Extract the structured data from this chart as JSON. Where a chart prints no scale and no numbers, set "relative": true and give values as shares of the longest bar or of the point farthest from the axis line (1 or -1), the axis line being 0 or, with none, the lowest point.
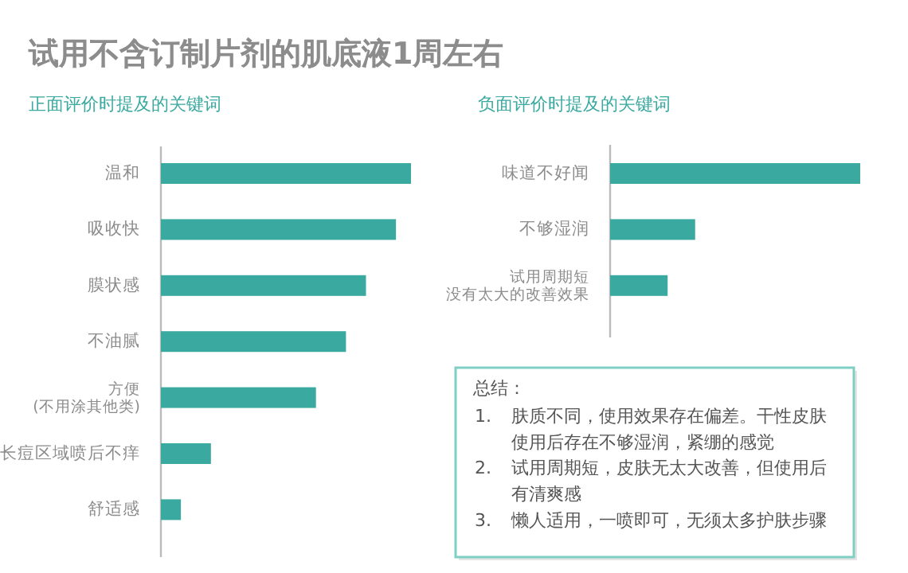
{
  "chart_data": [
    {
      "type": "bar",
      "orientation": "horizontal",
      "relative": true,
      "title": "试用不含订制片剂的肌底液1周左右",
      "subtitle": "正面评价时提及的关键词",
      "categories": [
        "温和",
        "吸收快",
        "膜状感",
        "不油腻",
        "方便\n(不用涂其他类)",
        "长痘区域喷后不痒",
        "舒适感"
      ],
      "values": [
        1,
        0.94,
        0.82,
        0.74,
        0.62,
        0.2,
        0.08
      ],
      "color": "#3aa99f"
    },
    {
      "type": "bar",
      "orientation": "horizontal",
      "relative": true,
      "subtitle": "负面评价时提及的关键词",
      "categories": [
        "味道不好闻",
        "不够湿润",
        "试用周期短没有太大的改善效果"
      ],
      "values": [
        1,
        0.34,
        0.23
      ],
      "color": "#3aa99f"
    },
    {
      "type": "other",
      "annotations": [
        "总结：",
        "1. 肤质不同，使用效果存在偏差。干性皮肤使用后存在不够湿润，紧绷的感觉",
        "2. 试用周期短，皮肤无太大改善，但使用后有清爽感",
        "3. 懒人适用，一喷即可，无须太多护肤步骤"
      ]
    }
  ]
}
